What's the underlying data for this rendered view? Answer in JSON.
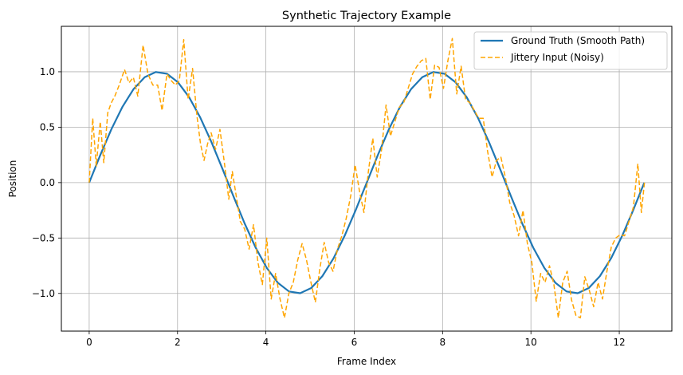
{
  "chart_data": {
    "type": "line",
    "title": "Synthetic Trajectory Example",
    "xlabel": "Frame Index",
    "ylabel": "Position",
    "xlim": [
      -0.63,
      13.19
    ],
    "ylim": [
      -1.34,
      1.41
    ],
    "xticks": [
      0,
      2,
      4,
      6,
      8,
      10,
      12
    ],
    "yticks": [
      -1.0,
      -0.5,
      0.0,
      0.5,
      1.0
    ],
    "ytick_labels": [
      "−1.0",
      "−0.5",
      "0.0",
      "0.5",
      "1.0"
    ],
    "grid": true,
    "legend_position": "top-right",
    "series": [
      {
        "name": "Ground Truth (Smooth Path)",
        "color": "#1f77b4",
        "style": "solid",
        "x": [
          0,
          0.2513,
          0.5027,
          0.754,
          1.0053,
          1.2566,
          1.508,
          1.7593,
          2.0106,
          2.262,
          2.5133,
          2.7646,
          3.0159,
          3.2673,
          3.5186,
          3.7699,
          4.0212,
          4.2726,
          4.5239,
          4.7752,
          5.0265,
          5.2779,
          5.5292,
          5.7805,
          6.0319,
          6.2832,
          6.5345,
          6.7858,
          7.0372,
          7.2885,
          7.5398,
          7.7911,
          8.0425,
          8.2938,
          8.5451,
          8.7965,
          9.0478,
          9.2991,
          9.5504,
          9.8018,
          10.0531,
          10.3044,
          10.5558,
          10.8071,
          11.0584,
          11.3097,
          11.5611,
          11.8124,
          12.0637,
          12.315,
          12.5664
        ],
        "values": [
          0,
          0.2487,
          0.4818,
          0.6845,
          0.8443,
          0.9511,
          0.998,
          0.9823,
          0.9048,
          0.7705,
          0.5878,
          0.3681,
          0.1253,
          -0.1253,
          -0.3681,
          -0.5878,
          -0.7705,
          -0.9048,
          -0.9823,
          -0.998,
          -0.9511,
          -0.8443,
          -0.6845,
          -0.4818,
          -0.2487,
          0,
          0.2487,
          0.4818,
          0.6845,
          0.8443,
          0.9511,
          0.998,
          0.9823,
          0.9048,
          0.7705,
          0.5878,
          0.3681,
          0.1253,
          -0.1253,
          -0.3681,
          -0.5878,
          -0.7705,
          -0.9048,
          -0.9823,
          -0.998,
          -0.9511,
          -0.8443,
          -0.6845,
          -0.4818,
          -0.2487,
          0
        ]
      },
      {
        "name": "Jittery Input (Noisy)",
        "color": "#ffa500",
        "style": "dashed",
        "x": [
          0,
          0.08,
          0.16,
          0.25,
          0.33,
          0.42,
          0.5,
          0.58,
          0.68,
          0.8,
          0.9,
          1.0,
          1.1,
          1.22,
          1.33,
          1.44,
          1.55,
          1.65,
          1.76,
          1.86,
          1.95,
          2.04,
          2.14,
          2.24,
          2.34,
          2.44,
          2.52,
          2.6,
          2.68,
          2.76,
          2.86,
          2.96,
          3.06,
          3.16,
          3.24,
          3.32,
          3.42,
          3.52,
          3.62,
          3.72,
          3.82,
          3.92,
          4.02,
          4.12,
          4.22,
          4.32,
          4.42,
          4.52,
          4.62,
          4.72,
          4.82,
          4.92,
          5.02,
          5.12,
          5.22,
          5.32,
          5.42,
          5.52,
          5.62,
          5.72,
          5.82,
          5.92,
          6.02,
          6.12,
          6.22,
          6.32,
          6.42,
          6.52,
          6.62,
          6.72,
          6.82,
          6.92,
          7.02,
          7.12,
          7.22,
          7.32,
          7.42,
          7.52,
          7.62,
          7.72,
          7.82,
          7.92,
          8.02,
          8.12,
          8.22,
          8.32,
          8.42,
          8.52,
          8.62,
          8.72,
          8.82,
          8.92,
          9.02,
          9.12,
          9.22,
          9.32,
          9.42,
          9.52,
          9.62,
          9.72,
          9.82,
          9.92,
          10.02,
          10.12,
          10.22,
          10.32,
          10.42,
          10.52,
          10.62,
          10.72,
          10.82,
          10.92,
          11.02,
          11.12,
          11.22,
          11.32,
          11.42,
          11.52,
          11.62,
          11.72,
          11.82,
          11.92,
          12.02,
          12.12,
          12.22,
          12.32,
          12.42,
          12.5,
          12.57
        ],
        "values": [
          0.0,
          0.58,
          0.15,
          0.55,
          0.18,
          0.63,
          0.72,
          0.78,
          0.88,
          1.02,
          0.9,
          0.95,
          0.78,
          1.24,
          0.98,
          0.88,
          0.88,
          0.65,
          0.98,
          0.92,
          0.88,
          0.92,
          1.29,
          0.75,
          1.03,
          0.6,
          0.35,
          0.2,
          0.35,
          0.45,
          0.3,
          0.48,
          0.18,
          -0.15,
          0.1,
          -0.1,
          -0.35,
          -0.42,
          -0.6,
          -0.38,
          -0.72,
          -0.92,
          -0.5,
          -1.05,
          -0.82,
          -1.05,
          -1.22,
          -1.0,
          -0.9,
          -0.7,
          -0.55,
          -0.7,
          -0.9,
          -1.08,
          -0.78,
          -0.54,
          -0.72,
          -0.8,
          -0.6,
          -0.48,
          -0.32,
          -0.12,
          0.16,
          -0.08,
          -0.27,
          0.1,
          0.4,
          0.05,
          0.3,
          0.7,
          0.42,
          0.55,
          0.68,
          0.72,
          0.85,
          0.98,
          1.05,
          1.1,
          1.12,
          0.75,
          1.06,
          1.04,
          0.85,
          1.1,
          1.3,
          0.8,
          1.05,
          0.75,
          0.72,
          0.65,
          0.58,
          0.58,
          0.28,
          0.05,
          0.2,
          0.23,
          0.05,
          -0.18,
          -0.3,
          -0.48,
          -0.25,
          -0.55,
          -0.72,
          -1.07,
          -0.82,
          -0.9,
          -0.75,
          -0.92,
          -1.22,
          -0.9,
          -0.8,
          -1.06,
          -1.2,
          -1.22,
          -0.85,
          -0.97,
          -1.12,
          -0.9,
          -1.05,
          -0.8,
          -0.58,
          -0.5,
          -0.47,
          -0.48,
          -0.35,
          -0.22,
          0.17,
          -0.27,
          0.0
        ]
      }
    ]
  }
}
